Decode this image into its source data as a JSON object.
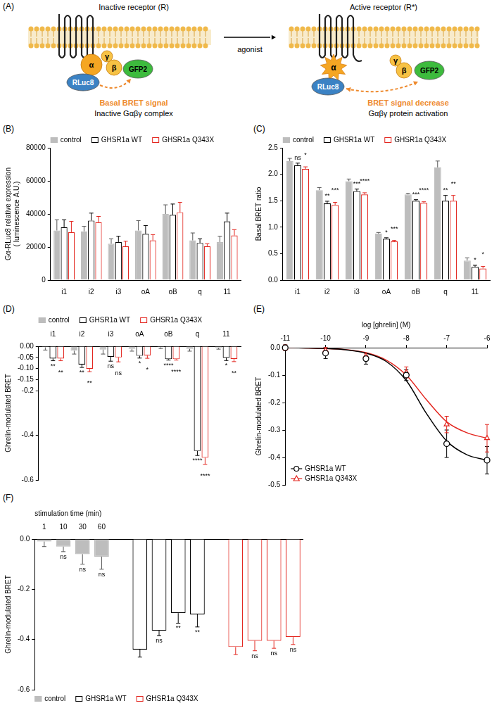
{
  "diagram": {
    "panel": "(A)",
    "left": {
      "title": "Inactive receptor (R)",
      "signal": "Basal BRET signal",
      "caption": "Inactive Gαβγ complex"
    },
    "arrow_label": "agonist",
    "right": {
      "title": "Active receptor (R*)",
      "signal": "BRET signal decrease",
      "caption": "Gαβγ protein activation"
    },
    "labels": {
      "alpha": "α",
      "beta": "β",
      "gamma": "γ",
      "donor": "RLuc8",
      "acceptor": "GFP2"
    }
  },
  "chart_data": [
    {
      "panel": "(B)",
      "type": "bar",
      "categories": [
        "i1",
        "i2",
        "i3",
        "oA",
        "oB",
        "q",
        "11"
      ],
      "y_label": [
        "Gα-RLuc8 relative expression",
        "( luminescence A.U.)"
      ],
      "ylim": [
        0,
        80000
      ],
      "yticks": [
        0,
        20000,
        40000,
        60000,
        80000
      ],
      "grid": false,
      "legend": "top",
      "series": [
        {
          "name": "control",
          "color": "#bdbdbd",
          "marker": "filled",
          "values": [
            30000,
            29500,
            22000,
            30000,
            40000,
            24000,
            23000
          ],
          "errors": [
            6500,
            3000,
            3000,
            6000,
            5500,
            4500,
            3500
          ]
        },
        {
          "name": "GHSR1a WT",
          "color": "#000000",
          "marker": "open",
          "values": [
            32000,
            36000,
            23000,
            28000,
            39500,
            22500,
            35500
          ],
          "errors": [
            4500,
            4500,
            3500,
            5000,
            6500,
            2500,
            5000
          ]
        },
        {
          "name": "GHSR1a Q343X",
          "color": "#e3261f",
          "marker": "open",
          "values": [
            29000,
            35000,
            20500,
            24000,
            41000,
            20500,
            27000
          ],
          "errors": [
            6500,
            3500,
            3000,
            3500,
            6000,
            1500,
            3500
          ]
        }
      ]
    },
    {
      "panel": "(C)",
      "type": "bar",
      "categories": [
        "i1",
        "i2",
        "i3",
        "oA",
        "oB",
        "q",
        "11"
      ],
      "y_label": "Basal BRET ratio",
      "ylim": [
        0,
        2.5
      ],
      "yticks": [
        {
          "value": 0,
          "label": "0.0"
        },
        0.5,
        {
          "value": 1,
          "label": "1.0"
        },
        1.5,
        {
          "value": 2,
          "label": "2.0"
        },
        2.5
      ],
      "grid": false,
      "legend": "top",
      "series": [
        {
          "name": "control",
          "color": "#bdbdbd",
          "marker": "filled",
          "values": [
            2.25,
            1.7,
            1.87,
            0.88,
            1.62,
            2.13,
            0.37
          ],
          "errors": [
            0.05,
            0.05,
            0.04,
            0.02,
            0.02,
            0.12,
            0.05
          ]
        },
        {
          "name": "GHSR1a WT",
          "color": "#000000",
          "marker": "open",
          "values": [
            2.17,
            1.45,
            1.68,
            0.78,
            1.5,
            1.5,
            0.25
          ],
          "errors": [
            0.04,
            0.04,
            0.04,
            0.02,
            0.02,
            0.1,
            0.03
          ],
          "significance": [
            "ns",
            "**",
            "***",
            "*",
            "***",
            "**",
            "*"
          ]
        },
        {
          "name": "GHSR1a Q343X",
          "color": "#e3261f",
          "marker": "open",
          "values": [
            2.1,
            1.42,
            1.62,
            0.73,
            1.46,
            1.5,
            0.22
          ],
          "errors": [
            0.04,
            0.05,
            0.03,
            0.02,
            0.02,
            0.1,
            0.04
          ],
          "significance": [
            "*",
            "***",
            "****",
            "***",
            "****",
            "**",
            "*"
          ]
        }
      ]
    },
    {
      "panel": "(D)",
      "type": "bar",
      "categories": [
        "i1",
        "i2",
        "i3",
        "oA",
        "oB",
        "q",
        "11"
      ],
      "y_label": "Ghrelin-modulated BRET",
      "ylim": [
        -0.6,
        0
      ],
      "yticks": [
        {
          "value": 0,
          "label": "0.00"
        },
        -0.05,
        {
          "value": -0.1,
          "label": "-0.10"
        },
        -0.15,
        -0.2,
        -0.4,
        -0.6
      ],
      "grid": false,
      "legend": "top",
      "series": [
        {
          "name": "control",
          "color": "#bdbdbd",
          "marker": "filled",
          "values": [
            -0.005,
            -0.02,
            -0.015,
            -0.012,
            -0.005,
            -0.012,
            -0.008
          ],
          "errors": [
            0.012,
            0.015,
            0.02,
            0.01,
            0.005,
            0.01,
            0.005
          ]
        },
        {
          "name": "GHSR1a WT",
          "color": "#000000",
          "marker": "open",
          "values": [
            -0.055,
            -0.082,
            -0.047,
            -0.043,
            -0.058,
            -0.47,
            -0.052
          ],
          "errors": [
            0.01,
            0.013,
            0.02,
            0.01,
            0.004,
            0.02,
            0.012
          ],
          "significance": [
            "**",
            "**",
            "ns",
            "*",
            "****",
            "****",
            "*"
          ]
        },
        {
          "name": "GHSR1a Q343X",
          "color": "#e3261f",
          "marker": "open",
          "values": [
            -0.055,
            -0.102,
            -0.05,
            -0.042,
            -0.058,
            -0.5,
            -0.057
          ],
          "errors": [
            0.01,
            0.012,
            0.02,
            0.012,
            0.004,
            0.03,
            0.012
          ],
          "significance": [
            "**",
            "**",
            "ns",
            "*",
            "****",
            "****",
            "**"
          ]
        }
      ]
    },
    {
      "panel": "(E)",
      "type": "scatter",
      "x_label": "log [ghrelin] (M)",
      "y_label": "Ghrelin-modulated BRET",
      "x": [
        -11,
        -10,
        -9,
        -8,
        -7,
        -6
      ],
      "fit_x": [
        -11,
        -10.5,
        -10,
        -9.5,
        -9,
        -8.5,
        -8,
        -7.5,
        -7,
        -6.5,
        -6
      ],
      "xlim": [
        -11,
        -6
      ],
      "xticks": [
        -11,
        -10,
        -9,
        -8,
        -7,
        -6
      ],
      "ylim": [
        -0.5,
        0
      ],
      "yticks": [
        {
          "value": 0,
          "label": "0.0"
        },
        -0.1,
        -0.2,
        -0.3,
        -0.4,
        -0.5
      ],
      "grid": false,
      "legend": "bottom-left",
      "series": [
        {
          "name": "GHSR1a WT",
          "color": "#000000",
          "marker": "circle",
          "line_style": "solid",
          "values": [
            0.0,
            -0.02,
            -0.04,
            -0.1,
            -0.35,
            -0.41
          ],
          "errors": [
            0.01,
            0.02,
            0.02,
            0.02,
            0.05,
            0.05
          ],
          "fit": [
            0.0,
            -0.001,
            -0.003,
            -0.008,
            -0.02,
            -0.05,
            -0.12,
            -0.24,
            -0.34,
            -0.39,
            -0.41
          ]
        },
        {
          "name": "GHSR1a Q343X",
          "color": "#e3261f",
          "marker": "triangle",
          "line_style": "solid",
          "values": [
            0.0,
            -0.01,
            -0.03,
            -0.09,
            -0.28,
            -0.33
          ],
          "errors": [
            0.01,
            0.01,
            0.01,
            0.02,
            0.03,
            0.05
          ],
          "fit": [
            0.0,
            -0.001,
            -0.003,
            -0.007,
            -0.018,
            -0.045,
            -0.1,
            -0.19,
            -0.27,
            -0.31,
            -0.33
          ]
        }
      ]
    },
    {
      "panel": "(F)",
      "type": "bar",
      "categories": [
        "1",
        "10",
        "30",
        "60"
      ],
      "x_label": "stimulation time (min)",
      "y_label": "Ghrelin-modulated BRET",
      "ylim": [
        -0.6,
        0
      ],
      "yticks": [
        {
          "value": 0,
          "label": "0.0"
        },
        -0.2,
        -0.4,
        -0.6
      ],
      "grid": false,
      "legend": "bottom",
      "series": [
        {
          "name": "control",
          "color": "#bdbdbd",
          "marker": "filled",
          "values": [
            -0.01,
            -0.03,
            -0.06,
            -0.07
          ],
          "errors": [
            0.02,
            0.02,
            0.04,
            0.05
          ],
          "significance": [
            null,
            "ns",
            "ns",
            "ns"
          ]
        },
        {
          "name": "GHSR1a WT",
          "color": "#000000",
          "marker": "open",
          "values": [
            -0.44,
            -0.365,
            -0.295,
            -0.3
          ],
          "errors": [
            0.03,
            0.02,
            0.04,
            0.05
          ],
          "significance": [
            null,
            "ns",
            "**",
            "**"
          ]
        },
        {
          "name": "GHSR1a Q343X",
          "color": "#e3261f",
          "marker": "open",
          "values": [
            -0.43,
            -0.405,
            -0.405,
            -0.39
          ],
          "errors": [
            0.03,
            0.04,
            0.03,
            0.03
          ],
          "significance": [
            null,
            "ns",
            "ns",
            "ns"
          ]
        }
      ]
    }
  ]
}
